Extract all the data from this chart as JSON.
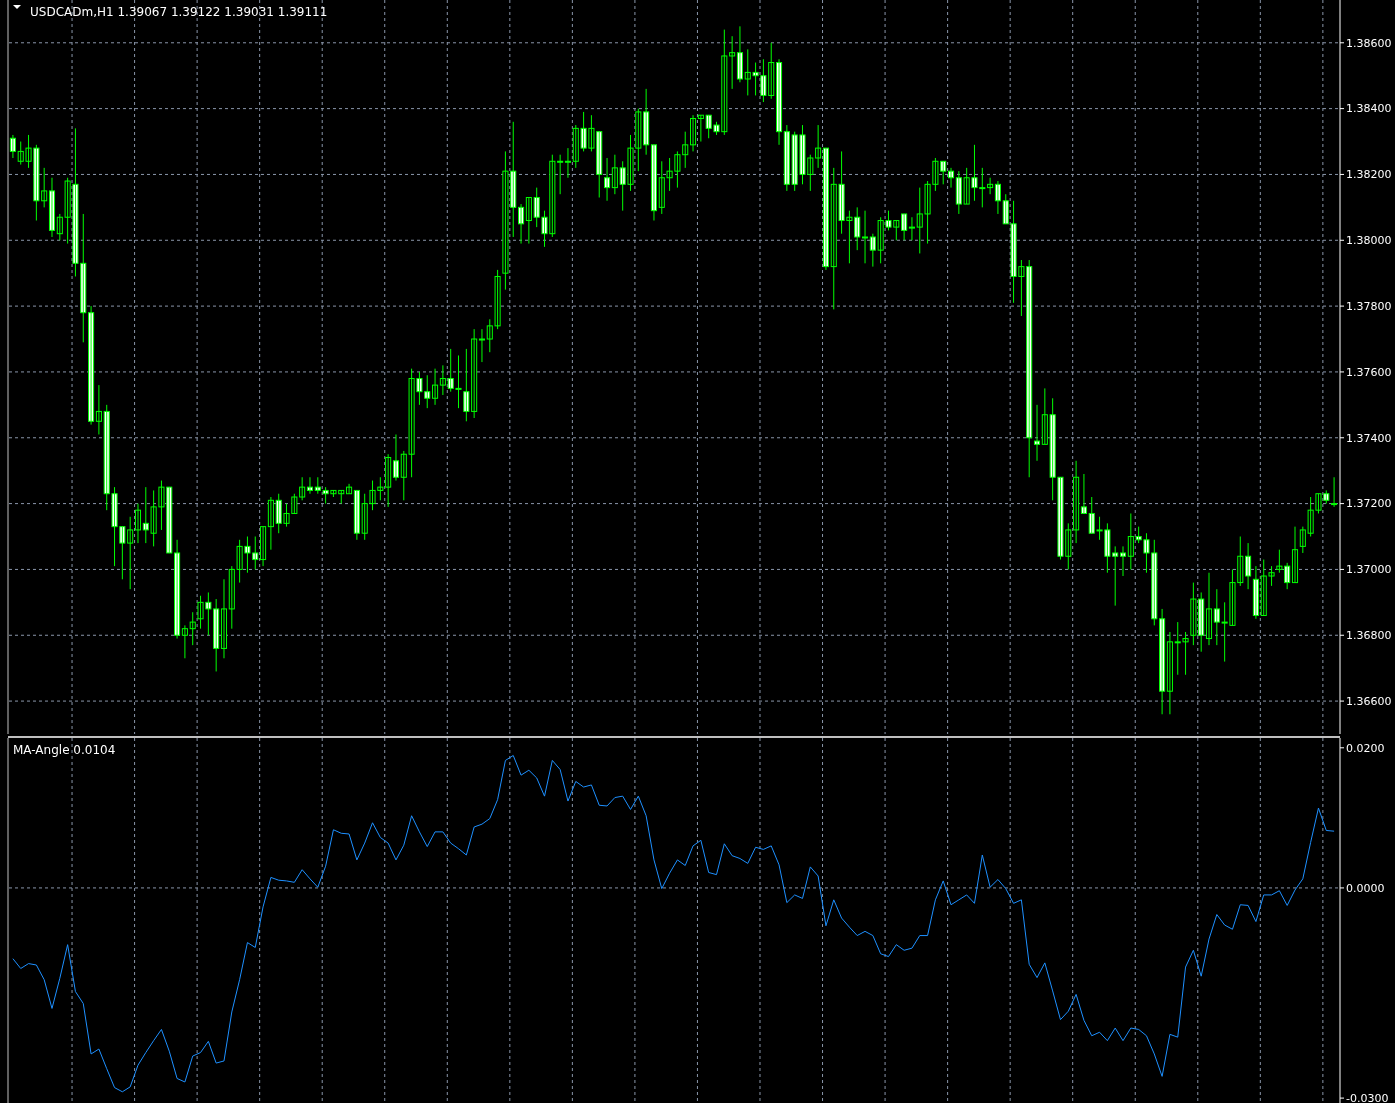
{
  "chart_data": [
    {
      "type": "candlestick",
      "title": "USDCADm,H1  1.39067 1.39122 1.39031 1.39111",
      "color": "#00ff00",
      "grid": true,
      "tick_labels": "y",
      "categories": [
        null,
        null,
        null,
        null,
        null,
        null,
        null,
        null,
        null,
        null,
        null,
        null,
        null,
        null,
        null,
        null,
        null,
        null,
        null,
        null,
        null,
        null,
        null,
        null,
        null,
        null,
        null,
        null,
        null,
        null,
        null,
        null,
        null,
        null,
        null,
        null,
        null,
        null,
        null,
        null,
        null,
        null,
        null,
        null,
        null,
        null,
        null,
        null,
        null,
        null,
        null,
        null,
        null,
        null,
        null,
        null,
        null,
        null,
        null,
        null,
        null,
        null,
        null,
        null,
        null,
        null,
        null,
        null,
        null,
        null,
        null,
        null,
        null,
        null,
        null,
        null,
        null,
        null,
        null,
        null,
        null,
        null,
        null,
        null,
        null,
        null,
        null,
        null,
        null,
        null,
        null,
        null,
        null,
        null,
        null,
        null,
        null,
        null,
        null,
        null,
        null,
        null,
        null,
        null,
        null,
        null,
        null,
        null,
        null,
        null,
        null,
        null,
        null,
        null,
        null,
        null,
        null,
        null,
        null,
        null,
        null,
        null,
        null,
        null,
        null,
        null,
        null,
        null,
        null,
        null,
        null,
        null,
        null,
        null,
        null,
        null,
        null,
        null,
        null,
        null,
        null,
        null,
        null,
        null,
        null,
        null,
        null,
        null,
        null,
        null,
        null,
        null,
        null,
        null,
        null,
        null,
        null,
        null,
        null,
        null,
        null,
        null,
        null,
        null,
        null,
        null,
        null,
        null,
        null,
        null
      ],
      "ohlc": [
        [
          1.3831,
          1.3832,
          1.3825,
          1.3827
        ],
        [
          1.3824,
          1.383,
          1.3823,
          1.3827
        ],
        [
          1.3824,
          1.3832,
          1.3822,
          1.3828
        ],
        [
          1.3828,
          1.3829,
          1.3806,
          1.3812
        ],
        [
          1.3812,
          1.3822,
          1.381,
          1.3815
        ],
        [
          1.3815,
          1.3819,
          1.3801,
          1.3803
        ],
        [
          1.3802,
          1.3808,
          1.38,
          1.3807
        ],
        [
          1.3807,
          1.3819,
          1.3799,
          1.3818
        ],
        [
          1.3817,
          1.3834,
          1.3789,
          1.3793
        ],
        [
          1.3793,
          1.3808,
          1.3769,
          1.3778
        ],
        [
          1.3778,
          1.378,
          1.3744,
          1.3745
        ],
        [
          1.3745,
          1.3756,
          1.3741,
          1.3748
        ],
        [
          1.3748,
          1.375,
          1.3718,
          1.3723
        ],
        [
          1.3723,
          1.3725,
          1.3701,
          1.3713
        ],
        [
          1.3713,
          1.3713,
          1.3697,
          1.3708
        ],
        [
          1.3708,
          1.3716,
          1.3694,
          1.3712
        ],
        [
          1.3712,
          1.372,
          1.3708,
          1.3718
        ],
        [
          1.3714,
          1.3725,
          1.3708,
          1.3712
        ],
        [
          1.3711,
          1.3724,
          1.3707,
          1.3719
        ],
        [
          1.3719,
          1.3727,
          1.3712,
          1.3725
        ],
        [
          1.3725,
          1.3725,
          1.3705,
          1.3705
        ],
        [
          1.3705,
          1.3709,
          1.3679,
          1.368
        ],
        [
          1.368,
          1.3683,
          1.3673,
          1.3682
        ],
        [
          1.3682,
          1.3687,
          1.3677,
          1.3684
        ],
        [
          1.3685,
          1.3692,
          1.3682,
          1.369
        ],
        [
          1.369,
          1.3693,
          1.368,
          1.3688
        ],
        [
          1.3688,
          1.3691,
          1.3669,
          1.3676
        ],
        [
          1.3676,
          1.3697,
          1.3673,
          1.3688
        ],
        [
          1.3688,
          1.3701,
          1.3682,
          1.37
        ],
        [
          1.37,
          1.3709,
          1.3696,
          1.3707
        ],
        [
          1.3707,
          1.371,
          1.3699,
          1.3705
        ],
        [
          1.3705,
          1.371,
          1.37,
          1.3703
        ],
        [
          1.3703,
          1.3713,
          1.3701,
          1.3713
        ],
        [
          1.3713,
          1.3722,
          1.3706,
          1.3721
        ],
        [
          1.3721,
          1.3723,
          1.3711,
          1.3714
        ],
        [
          1.3714,
          1.372,
          1.3713,
          1.3717
        ],
        [
          1.3717,
          1.3723,
          1.3717,
          1.3722
        ],
        [
          1.3722,
          1.3728,
          1.3721,
          1.3725
        ],
        [
          1.3725,
          1.3728,
          1.3723,
          1.3724
        ],
        [
          1.3725,
          1.3728,
          1.3723,
          1.3724
        ],
        [
          1.3724,
          1.3725,
          1.372,
          1.3723
        ],
        [
          1.3723,
          1.3724,
          1.3722,
          1.3724
        ],
        [
          1.3723,
          1.3724,
          1.372,
          1.3724
        ],
        [
          1.3723,
          1.3726,
          1.3723,
          1.3725
        ],
        [
          1.3724,
          1.3724,
          1.3709,
          1.3711
        ],
        [
          1.3711,
          1.3723,
          1.3709,
          1.372
        ],
        [
          1.372,
          1.3727,
          1.3718,
          1.3724
        ],
        [
          1.3724,
          1.3728,
          1.3721,
          1.3725
        ],
        [
          1.3725,
          1.3735,
          1.3719,
          1.3734
        ],
        [
          1.3733,
          1.3741,
          1.3727,
          1.3728
        ],
        [
          1.3728,
          1.3736,
          1.3721,
          1.3735
        ],
        [
          1.3735,
          1.3761,
          1.3728,
          1.3758
        ],
        [
          1.3758,
          1.376,
          1.375,
          1.3754
        ],
        [
          1.3754,
          1.3759,
          1.3749,
          1.3752
        ],
        [
          1.3752,
          1.3761,
          1.375,
          1.3756
        ],
        [
          1.3756,
          1.3762,
          1.3753,
          1.3758
        ],
        [
          1.3758,
          1.3767,
          1.3754,
          1.3755
        ],
        [
          1.3755,
          1.3765,
          1.3749,
          1.3755
        ],
        [
          1.3754,
          1.3767,
          1.3745,
          1.3748
        ],
        [
          1.3748,
          1.3773,
          1.3746,
          1.377
        ],
        [
          1.377,
          1.3773,
          1.3763,
          1.377
        ],
        [
          1.377,
          1.3776,
          1.3766,
          1.3774
        ],
        [
          1.3774,
          1.3791,
          1.3773,
          1.3789
        ],
        [
          1.379,
          1.3827,
          1.3785,
          1.3821
        ],
        [
          1.3821,
          1.3836,
          1.3801,
          1.381
        ],
        [
          1.381,
          1.3811,
          1.3799,
          1.3805
        ],
        [
          1.3806,
          1.3813,
          1.3799,
          1.3813
        ],
        [
          1.3813,
          1.3816,
          1.3804,
          1.3807
        ],
        [
          1.3807,
          1.3809,
          1.3798,
          1.3802
        ],
        [
          1.3802,
          1.3826,
          1.3801,
          1.3824
        ],
        [
          1.3824,
          1.3826,
          1.3814,
          1.3824
        ],
        [
          1.3824,
          1.3828,
          1.3819,
          1.3824
        ],
        [
          1.3824,
          1.3835,
          1.3822,
          1.3834
        ],
        [
          1.3834,
          1.3839,
          1.3827,
          1.3828
        ],
        [
          1.3828,
          1.3838,
          1.3827,
          1.3834
        ],
        [
          1.3833,
          1.3833,
          1.3813,
          1.382
        ],
        [
          1.3819,
          1.3825,
          1.3812,
          1.3816
        ],
        [
          1.3816,
          1.3826,
          1.3814,
          1.3822
        ],
        [
          1.3822,
          1.3824,
          1.3809,
          1.3817
        ],
        [
          1.3817,
          1.3832,
          1.3815,
          1.3828
        ],
        [
          1.3828,
          1.384,
          1.3821,
          1.3839
        ],
        [
          1.3839,
          1.3846,
          1.3826,
          1.3829
        ],
        [
          1.3829,
          1.3829,
          1.3806,
          1.3809
        ],
        [
          1.381,
          1.3824,
          1.3808,
          1.3819
        ],
        [
          1.3819,
          1.3825,
          1.3815,
          1.3821
        ],
        [
          1.3821,
          1.3827,
          1.3816,
          1.3826
        ],
        [
          1.3826,
          1.3833,
          1.3822,
          1.3829
        ],
        [
          1.3829,
          1.3838,
          1.3827,
          1.3837
        ],
        [
          1.3837,
          1.3838,
          1.383,
          1.3838
        ],
        [
          1.3838,
          1.3838,
          1.3831,
          1.3834
        ],
        [
          1.3835,
          1.3836,
          1.3832,
          1.3833
        ],
        [
          1.3833,
          1.3864,
          1.3832,
          1.3856
        ],
        [
          1.3856,
          1.3862,
          1.3846,
          1.3857
        ],
        [
          1.3857,
          1.3865,
          1.3848,
          1.3849
        ],
        [
          1.3849,
          1.3858,
          1.3844,
          1.3851
        ],
        [
          1.3851,
          1.3854,
          1.3844,
          1.385
        ],
        [
          1.385,
          1.3855,
          1.3842,
          1.3844
        ],
        [
          1.3844,
          1.386,
          1.3843,
          1.3854
        ],
        [
          1.3854,
          1.3855,
          1.3829,
          1.3833
        ],
        [
          1.3833,
          1.3835,
          1.3815,
          1.3817
        ],
        [
          1.3832,
          1.3833,
          1.3815,
          1.3817
        ],
        [
          1.3832,
          1.3835,
          1.3817,
          1.382
        ],
        [
          1.382,
          1.3826,
          1.3815,
          1.3825
        ],
        [
          1.3825,
          1.3835,
          1.3822,
          1.3828
        ],
        [
          1.3828,
          1.3828,
          1.3791,
          1.3792
        ],
        [
          1.3792,
          1.3822,
          1.3779,
          1.3817
        ],
        [
          1.3817,
          1.3827,
          1.3802,
          1.3806
        ],
        [
          1.3806,
          1.3809,
          1.3793,
          1.3807
        ],
        [
          1.3807,
          1.381,
          1.3797,
          1.3801
        ],
        [
          1.3801,
          1.3809,
          1.3793,
          1.3801
        ],
        [
          1.3801,
          1.3802,
          1.3792,
          1.3797
        ],
        [
          1.3797,
          1.3807,
          1.3793,
          1.3806
        ],
        [
          1.3806,
          1.3809,
          1.3803,
          1.3804
        ],
        [
          1.3804,
          1.3806,
          1.38,
          1.3806
        ],
        [
          1.3808,
          1.3808,
          1.38,
          1.3803
        ],
        [
          1.3804,
          1.3807,
          1.38,
          1.3804
        ],
        [
          1.3804,
          1.3816,
          1.3796,
          1.3808
        ],
        [
          1.3808,
          1.3818,
          1.3799,
          1.3817
        ],
        [
          1.3817,
          1.3825,
          1.3815,
          1.3824
        ],
        [
          1.3824,
          1.3824,
          1.3817,
          1.3821
        ],
        [
          1.3821,
          1.3822,
          1.3816,
          1.3819
        ],
        [
          1.3819,
          1.3821,
          1.3808,
          1.3811
        ],
        [
          1.3811,
          1.3822,
          1.3811,
          1.3819
        ],
        [
          1.3819,
          1.3829,
          1.3812,
          1.3816
        ],
        [
          1.3816,
          1.3822,
          1.381,
          1.3816
        ],
        [
          1.3816,
          1.3819,
          1.3814,
          1.3817
        ],
        [
          1.3817,
          1.3818,
          1.3808,
          1.3812
        ],
        [
          1.3812,
          1.3814,
          1.3805,
          1.3805
        ],
        [
          1.3805,
          1.3812,
          1.3781,
          1.3789
        ],
        [
          1.3789,
          1.3794,
          1.3777,
          1.3792
        ],
        [
          1.3792,
          1.3794,
          1.3728,
          1.374
        ],
        [
          1.3739,
          1.375,
          1.3733,
          1.3738
        ],
        [
          1.3738,
          1.3755,
          1.3738,
          1.3747
        ],
        [
          1.3747,
          1.3752,
          1.3721,
          1.3728
        ],
        [
          1.3728,
          1.3728,
          1.3703,
          1.3704
        ],
        [
          1.3704,
          1.3714,
          1.37,
          1.3712
        ],
        [
          1.3712,
          1.3733,
          1.3708,
          1.3728
        ],
        [
          1.3719,
          1.3729,
          1.3717,
          1.3717
        ],
        [
          1.3717,
          1.3722,
          1.3711,
          1.3711
        ],
        [
          1.3712,
          1.3716,
          1.3709,
          1.3712
        ],
        [
          1.3712,
          1.3714,
          1.3699,
          1.3704
        ],
        [
          1.3705,
          1.3707,
          1.3689,
          1.3704
        ],
        [
          1.3705,
          1.3707,
          1.3698,
          1.3704
        ],
        [
          1.3704,
          1.3717,
          1.37,
          1.371
        ],
        [
          1.371,
          1.3713,
          1.3708,
          1.3709
        ],
        [
          1.3709,
          1.3711,
          1.3699,
          1.3705
        ],
        [
          1.3705,
          1.3709,
          1.3683,
          1.3685
        ],
        [
          1.3685,
          1.3688,
          1.3656,
          1.3663
        ],
        [
          1.3663,
          1.3681,
          1.3656,
          1.3678
        ],
        [
          1.3678,
          1.3684,
          1.3668,
          1.3678
        ],
        [
          1.3678,
          1.3681,
          1.3668,
          1.3679
        ],
        [
          1.368,
          1.3696,
          1.3677,
          1.3691
        ],
        [
          1.3691,
          1.3693,
          1.3675,
          1.368
        ],
        [
          1.3679,
          1.3699,
          1.3677,
          1.3688
        ],
        [
          1.3688,
          1.3694,
          1.3677,
          1.3684
        ],
        [
          1.3684,
          1.369,
          1.3672,
          1.3684
        ],
        [
          1.3683,
          1.37,
          1.3683,
          1.3696
        ],
        [
          1.3696,
          1.371,
          1.3695,
          1.3704
        ],
        [
          1.3704,
          1.3708,
          1.3694,
          1.3698
        ],
        [
          1.3697,
          1.3701,
          1.3685,
          1.3686
        ],
        [
          1.3686,
          1.3703,
          1.3686,
          1.3698
        ],
        [
          1.3698,
          1.3701,
          1.3695,
          1.3699
        ],
        [
          1.37,
          1.3706,
          1.3699,
          1.3701
        ],
        [
          1.3701,
          1.3702,
          1.3694,
          1.3696
        ],
        [
          1.3696,
          1.3713,
          1.3696,
          1.3706
        ],
        [
          1.3707,
          1.3713,
          1.3705,
          1.3712
        ],
        [
          1.3711,
          1.3722,
          1.371,
          1.3718
        ],
        [
          1.3718,
          1.3723,
          1.3717,
          1.3723
        ],
        [
          1.3723,
          1.3724,
          1.372,
          1.3721
        ],
        [
          1.372,
          1.3728,
          1.3719,
          1.372
        ]
      ],
      "ylim": [
        1.365,
        1.3873
      ],
      "yticks": [
        {
          "value": 1.366,
          "label": "1.36600"
        },
        {
          "value": 1.368,
          "label": "1.36800"
        },
        {
          "value": 1.37,
          "label": "1.37000"
        },
        {
          "value": 1.372,
          "label": "1.37200"
        },
        {
          "value": 1.374,
          "label": "1.37400"
        },
        {
          "value": 1.376,
          "label": "1.37600"
        },
        {
          "value": 1.378,
          "label": "1.37800"
        },
        {
          "value": 1.38,
          "label": "1.38000"
        },
        {
          "value": 1.382,
          "label": "1.38200"
        },
        {
          "value": 1.384,
          "label": "1.38400"
        },
        {
          "value": 1.386,
          "label": "1.38600"
        }
      ]
    },
    {
      "type": "line",
      "title": "MA-Angle 0.0104",
      "grid": "x",
      "tick_labels": "y",
      "categories": [
        null,
        null,
        null,
        null,
        null,
        null,
        null,
        null,
        null,
        null,
        null,
        null,
        null,
        null,
        null,
        null,
        null,
        null,
        null,
        null,
        null,
        null,
        null,
        null,
        null,
        null,
        null,
        null,
        null,
        null,
        null,
        null,
        null,
        null,
        null,
        null,
        null,
        null,
        null,
        null,
        null,
        null,
        null,
        null,
        null,
        null,
        null,
        null,
        null,
        null,
        null,
        null,
        null,
        null,
        null,
        null,
        null,
        null,
        null,
        null,
        null,
        null,
        null,
        null,
        null,
        null,
        null,
        null,
        null,
        null,
        null,
        null,
        null,
        null,
        null,
        null,
        null,
        null,
        null,
        null,
        null,
        null,
        null,
        null,
        null,
        null,
        null,
        null,
        null,
        null,
        null,
        null,
        null,
        null,
        null,
        null,
        null,
        null,
        null,
        null,
        null,
        null,
        null,
        null,
        null,
        null,
        null,
        null,
        null,
        null,
        null,
        null,
        null,
        null,
        null,
        null,
        null,
        null,
        null,
        null,
        null,
        null,
        null,
        null,
        null,
        null,
        null,
        null,
        null,
        null,
        null,
        null,
        null,
        null,
        null,
        null,
        null,
        null,
        null,
        null,
        null,
        null,
        null,
        null,
        null,
        null,
        null,
        null,
        null,
        null,
        null,
        null,
        null,
        null,
        null,
        null,
        null,
        null,
        null,
        null,
        null,
        null,
        null,
        null,
        null,
        null,
        null,
        null,
        null,
        null
      ],
      "series": [
        {
          "color": "#1e90ff",
          "values": [
            -0.0101,
            -0.0115,
            -0.0108,
            -0.011,
            -0.0131,
            -0.0172,
            -0.0129,
            -0.0081,
            -0.0148,
            -0.0165,
            -0.0237,
            -0.023,
            -0.0258,
            -0.0285,
            -0.0291,
            -0.0284,
            -0.0253,
            -0.0235,
            -0.0218,
            -0.0202,
            -0.0233,
            -0.0272,
            -0.0277,
            -0.024,
            -0.0235,
            -0.0219,
            -0.025,
            -0.0247,
            -0.0177,
            -0.0131,
            -0.0078,
            -0.0085,
            -0.0027,
            0.0015,
            0.0011,
            0.001,
            0.0008,
            0.0026,
            0.0013,
            0.0001,
            0.0031,
            0.0083,
            0.0078,
            0.0077,
            0.004,
            0.0064,
            0.0093,
            0.0072,
            0.0064,
            0.004,
            0.0061,
            0.0103,
            0.008,
            0.0059,
            0.008,
            0.008,
            0.0064,
            0.0056,
            0.0047,
            0.0087,
            0.0091,
            0.0099,
            0.0126,
            0.0182,
            0.0189,
            0.0161,
            0.0168,
            0.0157,
            0.0131,
            0.0182,
            0.0169,
            0.0124,
            0.0152,
            0.0144,
            0.0147,
            0.0118,
            0.0117,
            0.0129,
            0.0131,
            0.0112,
            0.0131,
            0.0103,
            0.004,
            -0.0001,
            0.0021,
            0.004,
            0.0032,
            0.006,
            0.0068,
            0.0022,
            0.0019,
            0.0063,
            0.0046,
            0.0042,
            0.0035,
            0.0058,
            0.0055,
            0.006,
            0.0033,
            -0.0021,
            -0.001,
            -0.0015,
            0.003,
            0.0017,
            -0.0054,
            -0.0017,
            -0.0043,
            -0.0056,
            -0.0068,
            -0.0062,
            -0.0068,
            -0.0094,
            -0.0098,
            -0.0081,
            -0.0089,
            -0.0086,
            -0.0068,
            -0.0068,
            -0.0017,
            0.001,
            -0.0024,
            -0.0017,
            -0.001,
            -0.0022,
            0.0047,
            0.0001,
            0.0012,
            -0.0001,
            -0.0022,
            -0.0017,
            -0.0109,
            -0.0128,
            -0.0107,
            -0.0147,
            -0.0188,
            -0.0176,
            -0.0152,
            -0.0189,
            -0.0211,
            -0.0206,
            -0.0218,
            -0.02,
            -0.0218,
            -0.02,
            -0.0202,
            -0.0211,
            -0.0237,
            -0.0269,
            -0.0209,
            -0.0213,
            -0.0113,
            -0.0089,
            -0.0126,
            -0.0073,
            -0.0038,
            -0.0053,
            -0.0059,
            -0.0024,
            -0.0025,
            -0.0048,
            -0.001,
            -0.001,
            -0.0004,
            -0.0025,
            -0.0003,
            0.0013,
            0.0065,
            0.0114,
            0.0082,
            0.0081
          ]
        }
      ],
      "ylim": [
        -0.0307,
        0.0214
      ],
      "yticks": [
        {
          "value": -0.03,
          "label": "-0.0300"
        },
        {
          "value": 0,
          "label": "0.0000"
        },
        {
          "value": 0.02,
          "label": "0.0200"
        }
      ],
      "ref_lines": [
        {
          "axis": "y",
          "value": 0,
          "color": "#8a96aa",
          "line_style": "dashed"
        }
      ]
    }
  ]
}
